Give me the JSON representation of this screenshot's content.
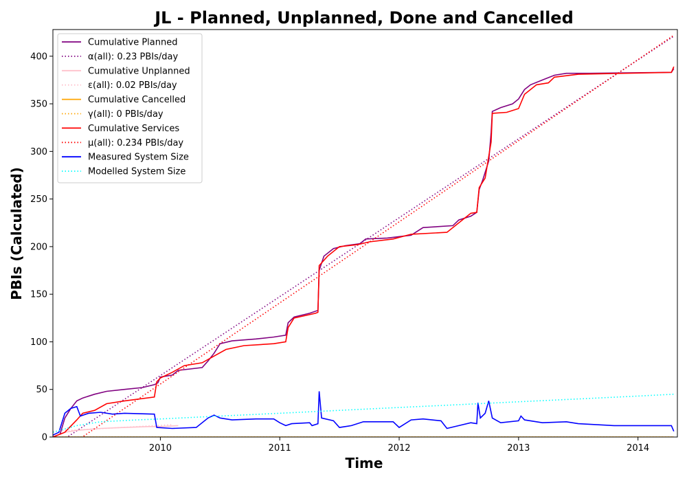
{
  "chart_data": {
    "type": "line",
    "title": "JL - Planned, Unplanned, Done  and Cancelled",
    "xlabel": "Time",
    "ylabel": "PBIs (Calculated)",
    "xlim": [
      2009.1,
      2014.33
    ],
    "ylim": [
      0,
      428
    ],
    "x_ticks": [
      2010,
      2011,
      2012,
      2013,
      2014
    ],
    "y_ticks": [
      0,
      50,
      100,
      150,
      200,
      250,
      300,
      350,
      400
    ],
    "legend_position": "top-left",
    "grid": false,
    "series": [
      {
        "name": "Cumulative Planned",
        "color": "#800080",
        "style": "solid",
        "points": [
          [
            2009.1,
            0
          ],
          [
            2009.16,
            3
          ],
          [
            2009.2,
            20
          ],
          [
            2009.25,
            30
          ],
          [
            2009.3,
            38
          ],
          [
            2009.35,
            41
          ],
          [
            2009.45,
            45
          ],
          [
            2009.55,
            48
          ],
          [
            2009.7,
            50
          ],
          [
            2009.85,
            52
          ],
          [
            2009.95,
            55
          ],
          [
            2009.98,
            57
          ],
          [
            2010.0,
            63
          ],
          [
            2010.1,
            65
          ],
          [
            2010.15,
            70
          ],
          [
            2010.35,
            73
          ],
          [
            2010.4,
            80
          ],
          [
            2010.45,
            88
          ],
          [
            2010.5,
            98
          ],
          [
            2010.6,
            101
          ],
          [
            2010.8,
            103
          ],
          [
            2010.95,
            105
          ],
          [
            2011.05,
            107
          ],
          [
            2011.07,
            120
          ],
          [
            2011.12,
            126
          ],
          [
            2011.25,
            130
          ],
          [
            2011.32,
            133
          ],
          [
            2011.33,
            175
          ],
          [
            2011.37,
            190
          ],
          [
            2011.45,
            198
          ],
          [
            2011.55,
            201
          ],
          [
            2011.67,
            203
          ],
          [
            2011.72,
            208
          ],
          [
            2011.9,
            209
          ],
          [
            2012.1,
            212
          ],
          [
            2012.2,
            220
          ],
          [
            2012.45,
            222
          ],
          [
            2012.5,
            228
          ],
          [
            2012.6,
            232
          ],
          [
            2012.65,
            236
          ],
          [
            2012.67,
            260
          ],
          [
            2012.7,
            270
          ],
          [
            2012.75,
            290
          ],
          [
            2012.77,
            320
          ],
          [
            2012.78,
            342
          ],
          [
            2012.85,
            346
          ],
          [
            2012.95,
            350
          ],
          [
            2013.0,
            355
          ],
          [
            2013.05,
            365
          ],
          [
            2013.1,
            370
          ],
          [
            2013.2,
            375
          ],
          [
            2013.3,
            380
          ],
          [
            2013.4,
            382
          ],
          [
            2013.6,
            382
          ],
          [
            2014.28,
            383
          ],
          [
            2014.3,
            387
          ]
        ]
      },
      {
        "name": "α(all): 0.23 PBIs/day",
        "color": "#800080",
        "style": "dotted",
        "points": [
          [
            2009.1,
            -10
          ],
          [
            2014.3,
            421
          ]
        ]
      },
      {
        "name": "Cumulative Unplanned",
        "color": "#FFC0CB",
        "style": "solid",
        "points": [
          [
            2009.1,
            0
          ],
          [
            2009.2,
            5
          ],
          [
            2009.3,
            7
          ],
          [
            2009.5,
            9
          ],
          [
            2009.7,
            10
          ],
          [
            2009.9,
            11
          ],
          [
            2010.0,
            11
          ],
          [
            2010.15,
            12
          ]
        ]
      },
      {
        "name": "ε(all): 0.02 PBIs/day",
        "color": "#FFC0CB",
        "style": "dotted",
        "points": [
          [
            2009.1,
            6
          ],
          [
            2010.1,
            13
          ]
        ]
      },
      {
        "name": "Cumulative Cancelled",
        "color": "#FFA500",
        "style": "solid",
        "points": [
          [
            2009.1,
            0
          ],
          [
            2014.3,
            0
          ]
        ]
      },
      {
        "name": "γ(all): 0 PBIs/day",
        "color": "#FFA500",
        "style": "dotted",
        "points": [
          [
            2009.1,
            0
          ],
          [
            2014.3,
            0
          ]
        ]
      },
      {
        "name": "Cumulative Services",
        "color": "#FF0000",
        "style": "solid",
        "points": [
          [
            2009.1,
            0
          ],
          [
            2009.2,
            5
          ],
          [
            2009.3,
            18
          ],
          [
            2009.35,
            25
          ],
          [
            2009.45,
            28
          ],
          [
            2009.55,
            35
          ],
          [
            2009.7,
            38
          ],
          [
            2009.95,
            42
          ],
          [
            2009.97,
            58
          ],
          [
            2010.0,
            62
          ],
          [
            2010.1,
            68
          ],
          [
            2010.2,
            75
          ],
          [
            2010.35,
            78
          ],
          [
            2010.45,
            85
          ],
          [
            2010.55,
            92
          ],
          [
            2010.7,
            96
          ],
          [
            2010.95,
            98
          ],
          [
            2011.05,
            100
          ],
          [
            2011.07,
            115
          ],
          [
            2011.12,
            125
          ],
          [
            2011.3,
            130
          ],
          [
            2011.32,
            131
          ],
          [
            2011.33,
            180
          ],
          [
            2011.4,
            190
          ],
          [
            2011.5,
            200
          ],
          [
            2011.65,
            202
          ],
          [
            2011.75,
            205
          ],
          [
            2011.95,
            208
          ],
          [
            2012.1,
            213
          ],
          [
            2012.4,
            215
          ],
          [
            2012.5,
            225
          ],
          [
            2012.6,
            235
          ],
          [
            2012.65,
            236
          ],
          [
            2012.67,
            262
          ],
          [
            2012.72,
            272
          ],
          [
            2012.77,
            310
          ],
          [
            2012.78,
            340
          ],
          [
            2012.9,
            341
          ],
          [
            2013.0,
            345
          ],
          [
            2013.05,
            360
          ],
          [
            2013.15,
            370
          ],
          [
            2013.25,
            372
          ],
          [
            2013.3,
            378
          ],
          [
            2013.5,
            381
          ],
          [
            2014.28,
            383
          ],
          [
            2014.3,
            389
          ]
        ]
      },
      {
        "name": "μ(all): 0.234 PBIs/day",
        "color": "#FF0000",
        "style": "dotted",
        "points": [
          [
            2009.1,
            -21
          ],
          [
            2014.3,
            422
          ]
        ]
      },
      {
        "name": "Measured System Size",
        "color": "#0000FF",
        "style": "solid",
        "points": [
          [
            2009.1,
            2
          ],
          [
            2009.15,
            5
          ],
          [
            2009.2,
            25
          ],
          [
            2009.25,
            30
          ],
          [
            2009.3,
            32
          ],
          [
            2009.33,
            22
          ],
          [
            2009.4,
            25
          ],
          [
            2009.5,
            26
          ],
          [
            2009.6,
            24
          ],
          [
            2009.7,
            25
          ],
          [
            2009.95,
            24
          ],
          [
            2009.97,
            10
          ],
          [
            2010.1,
            9
          ],
          [
            2010.3,
            10
          ],
          [
            2010.4,
            20
          ],
          [
            2010.45,
            23
          ],
          [
            2010.5,
            20
          ],
          [
            2010.6,
            18
          ],
          [
            2010.8,
            19
          ],
          [
            2010.95,
            19
          ],
          [
            2011.0,
            15
          ],
          [
            2011.05,
            12
          ],
          [
            2011.1,
            14
          ],
          [
            2011.25,
            15
          ],
          [
            2011.27,
            12
          ],
          [
            2011.32,
            14
          ],
          [
            2011.33,
            48
          ],
          [
            2011.35,
            20
          ],
          [
            2011.45,
            17
          ],
          [
            2011.5,
            10
          ],
          [
            2011.6,
            12
          ],
          [
            2011.7,
            16
          ],
          [
            2011.95,
            16
          ],
          [
            2012.0,
            10
          ],
          [
            2012.1,
            18
          ],
          [
            2012.2,
            19
          ],
          [
            2012.35,
            17
          ],
          [
            2012.4,
            9
          ],
          [
            2012.5,
            12
          ],
          [
            2012.6,
            15
          ],
          [
            2012.65,
            14
          ],
          [
            2012.66,
            36
          ],
          [
            2012.68,
            20
          ],
          [
            2012.72,
            25
          ],
          [
            2012.75,
            38
          ],
          [
            2012.78,
            20
          ],
          [
            2012.85,
            15
          ],
          [
            2013.0,
            17
          ],
          [
            2013.02,
            22
          ],
          [
            2013.05,
            18
          ],
          [
            2013.2,
            15
          ],
          [
            2013.4,
            16
          ],
          [
            2013.5,
            14
          ],
          [
            2013.8,
            12
          ],
          [
            2014.0,
            12
          ],
          [
            2014.28,
            12
          ],
          [
            2014.3,
            6
          ]
        ]
      },
      {
        "name": "Modelled System Size",
        "color": "#00FFFF",
        "style": "dotted",
        "points": [
          [
            2009.1,
            5
          ],
          [
            2009.3,
            12
          ],
          [
            2009.5,
            16
          ],
          [
            2009.8,
            18
          ],
          [
            2010.0,
            19
          ],
          [
            2010.5,
            22
          ],
          [
            2011.0,
            25
          ],
          [
            2011.5,
            28
          ],
          [
            2012.0,
            31
          ],
          [
            2012.5,
            34
          ],
          [
            2013.0,
            37
          ],
          [
            2013.5,
            40
          ],
          [
            2014.0,
            43
          ],
          [
            2014.3,
            45
          ]
        ]
      }
    ]
  }
}
